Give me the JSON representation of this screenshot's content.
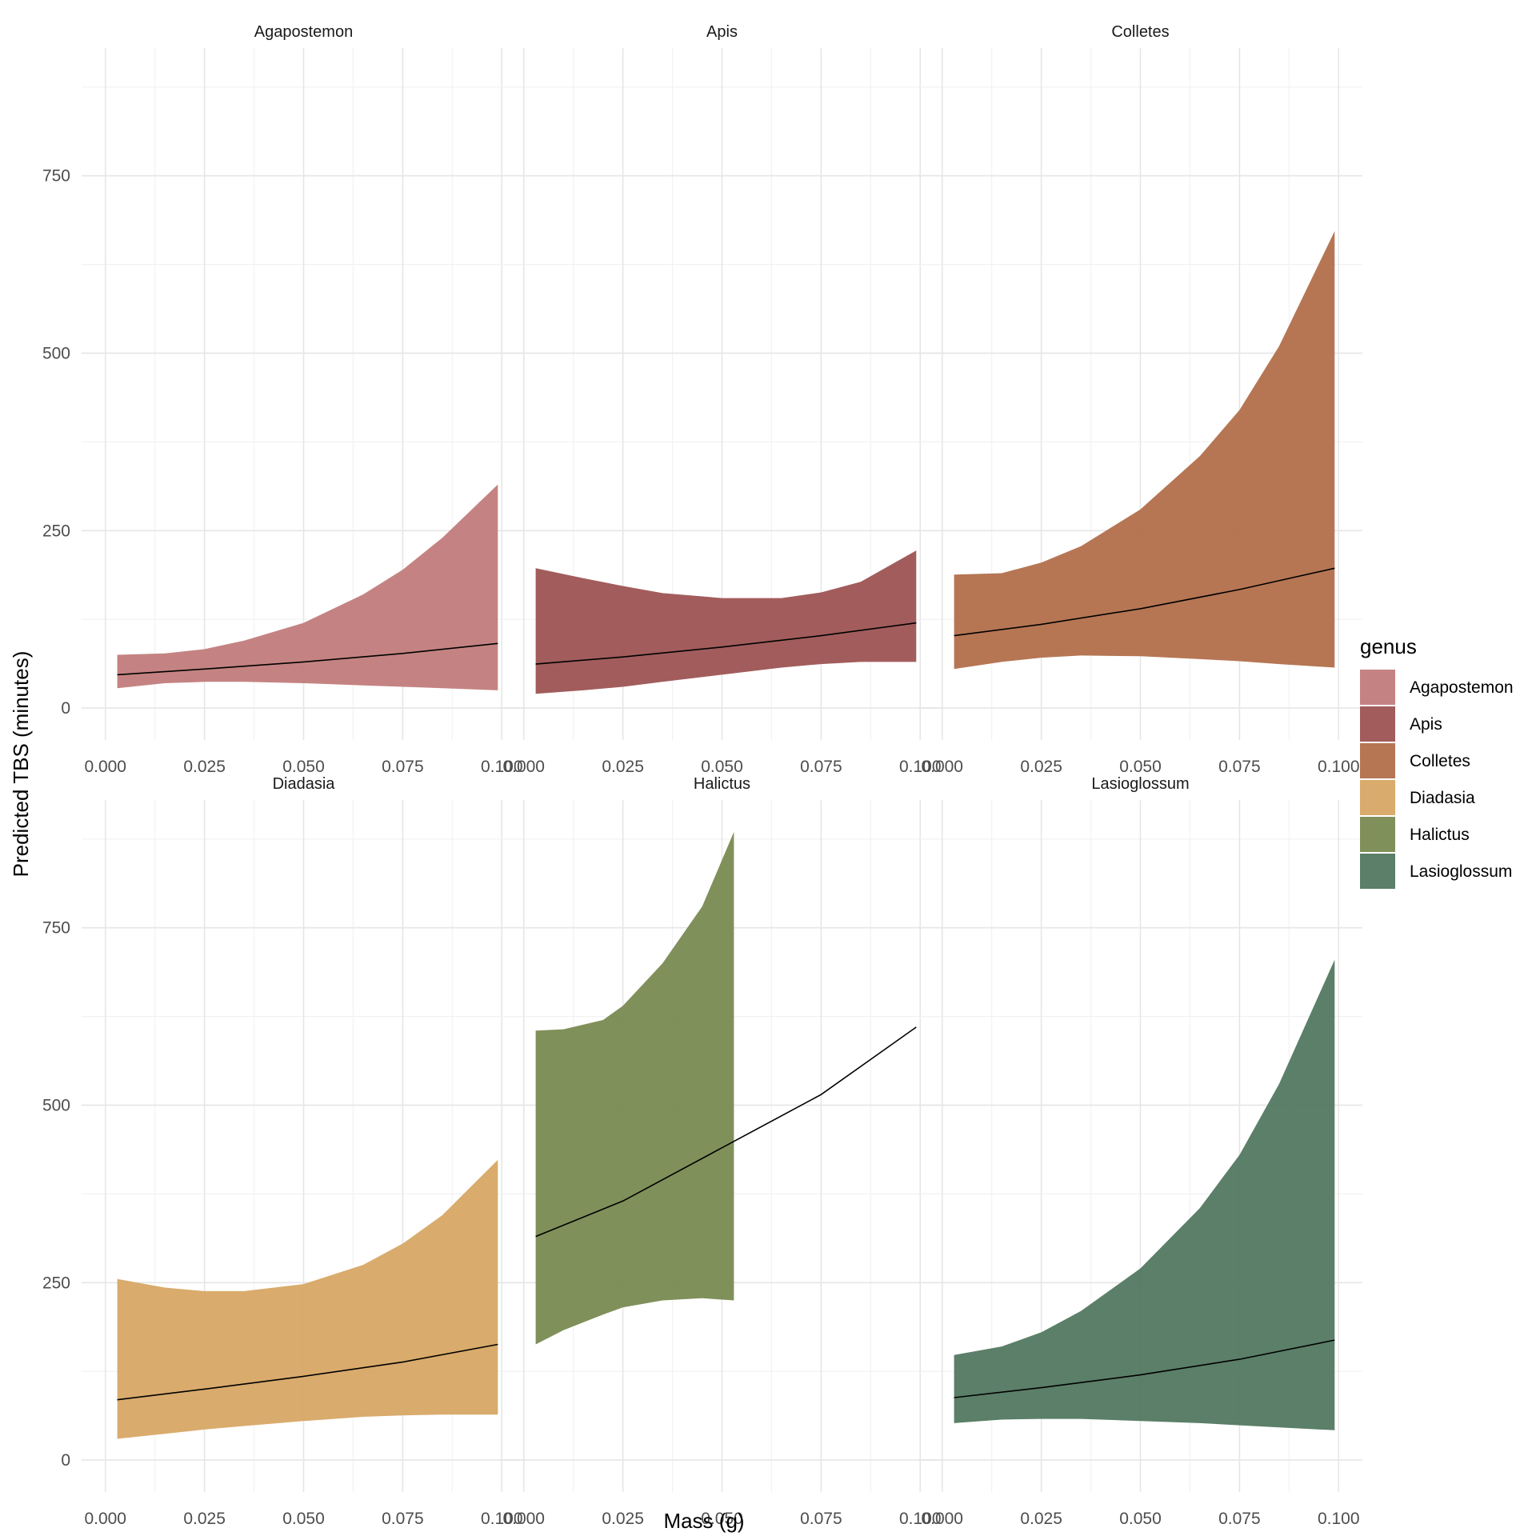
{
  "chart_data": {
    "type": "area",
    "subtype": "faceted ribbon with fitted line",
    "xlabel": "Mass (g)",
    "ylabel": "Predicted TBS (minutes)",
    "xlim": [
      -0.006,
      0.106
    ],
    "ylim": [
      -45,
      930
    ],
    "x_ticks": [
      0.0,
      0.025,
      0.05,
      0.075,
      0.1
    ],
    "x_tick_labels": [
      "0.000",
      "0.025",
      "0.050",
      "0.075",
      "0.100"
    ],
    "y_ticks": [
      0,
      250,
      500,
      750
    ],
    "y_tick_labels": [
      "0",
      "250",
      "500",
      "750"
    ],
    "grid": true,
    "legend": {
      "title": "genus",
      "placement": "right",
      "entries": [
        "Agapostemon",
        "Apis",
        "Colletes",
        "Diadasia",
        "Halictus",
        "Lasioglossum"
      ]
    },
    "facets": [
      {
        "name": "Agapostemon",
        "color": "#C07A78",
        "ribbon_x": [
          0.003,
          0.015,
          0.025,
          0.035,
          0.05,
          0.065,
          0.075,
          0.085,
          0.099
        ],
        "upper": [
          75,
          77,
          83,
          95,
          120,
          160,
          195,
          240,
          315
        ],
        "lower": [
          28,
          35,
          37,
          37,
          35,
          32,
          30,
          28,
          25
        ],
        "line_x": [
          0.003,
          0.025,
          0.05,
          0.075,
          0.099
        ],
        "fit": [
          47,
          55,
          65,
          77,
          91
        ]
      },
      {
        "name": "Apis",
        "color": "#9B5050",
        "ribbon_x": [
          0.003,
          0.015,
          0.025,
          0.035,
          0.05,
          0.065,
          0.075,
          0.085,
          0.099
        ],
        "upper": [
          197,
          183,
          172,
          162,
          155,
          155,
          163,
          178,
          222
        ],
        "lower": [
          20,
          25,
          30,
          37,
          47,
          57,
          62,
          65,
          65
        ],
        "line_x": [
          0.003,
          0.025,
          0.05,
          0.075,
          0.099
        ],
        "fit": [
          62,
          72,
          86,
          102,
          120
        ]
      },
      {
        "name": "Colletes",
        "color": "#B06C47",
        "ribbon_x": [
          0.003,
          0.015,
          0.025,
          0.035,
          0.05,
          0.065,
          0.075,
          0.085,
          0.099
        ],
        "upper": [
          188,
          190,
          205,
          228,
          280,
          355,
          420,
          510,
          672
        ],
        "lower": [
          55,
          65,
          71,
          74,
          73,
          69,
          66,
          62,
          57
        ],
        "line_x": [
          0.003,
          0.025,
          0.05,
          0.075,
          0.099
        ],
        "fit": [
          102,
          118,
          140,
          167,
          197
        ]
      },
      {
        "name": "Diadasia",
        "color": "#D6A561",
        "ribbon_x": [
          0.003,
          0.015,
          0.025,
          0.035,
          0.05,
          0.065,
          0.075,
          0.085,
          0.099
        ],
        "upper": [
          255,
          243,
          238,
          238,
          248,
          275,
          305,
          345,
          423
        ],
        "lower": [
          30,
          37,
          43,
          48,
          55,
          61,
          63,
          64,
          64
        ],
        "line_x": [
          0.003,
          0.025,
          0.05,
          0.075,
          0.099
        ],
        "fit": [
          85,
          100,
          118,
          138,
          163
        ]
      },
      {
        "name": "Halictus",
        "color": "#76884D",
        "ribbon_x": [
          0.003,
          0.01,
          0.02,
          0.025,
          0.035,
          0.045,
          0.053
        ],
        "upper": [
          605,
          607,
          620,
          640,
          700,
          780,
          885
        ],
        "lower": [
          163,
          183,
          205,
          215,
          225,
          228,
          225
        ],
        "line_x": [
          0.003,
          0.025,
          0.05,
          0.075,
          0.099
        ],
        "fit": [
          315,
          365,
          440,
          515,
          610
        ]
      },
      {
        "name": "Lasioglossum",
        "color": "#4F755C",
        "ribbon_x": [
          0.003,
          0.015,
          0.025,
          0.035,
          0.05,
          0.065,
          0.075,
          0.085,
          0.099
        ],
        "upper": [
          148,
          160,
          180,
          210,
          270,
          355,
          430,
          530,
          705
        ],
        "lower": [
          52,
          57,
          58,
          58,
          55,
          52,
          49,
          46,
          42
        ],
        "line_x": [
          0.003,
          0.025,
          0.05,
          0.075,
          0.099
        ],
        "fit": [
          88,
          102,
          120,
          142,
          169
        ]
      }
    ]
  }
}
